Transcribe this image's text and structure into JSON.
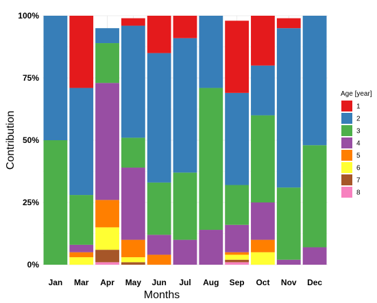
{
  "chart_data": {
    "type": "bar",
    "stacked": true,
    "normalized": true,
    "title": "",
    "xlabel": "Months",
    "ylabel": "Contribution",
    "ylim": [
      0,
      1
    ],
    "yticks": [
      0,
      0.25,
      0.5,
      0.75,
      1
    ],
    "ytick_labels": [
      "0%",
      "25%",
      "50%",
      "75%",
      "100%"
    ],
    "grid": true,
    "legend_position": "right",
    "legend_title": "Age [year]",
    "categories": [
      "Jan",
      "Mar",
      "Apr",
      "May",
      "Jun",
      "Jul",
      "Aug",
      "Sep",
      "Oct",
      "Nov",
      "Dec"
    ],
    "series": [
      {
        "name": "1",
        "color": "#e41a1c",
        "values": [
          0.0,
          0.29,
          0.0,
          0.03,
          0.15,
          0.09,
          0.0,
          0.29,
          0.2,
          0.04,
          0.0
        ]
      },
      {
        "name": "2",
        "color": "#377eb8",
        "values": [
          0.5,
          0.43,
          0.06,
          0.45,
          0.52,
          0.54,
          0.29,
          0.37,
          0.2,
          0.64,
          0.52
        ]
      },
      {
        "name": "3",
        "color": "#4daf4a",
        "values": [
          0.5,
          0.2,
          0.16,
          0.12,
          0.21,
          0.27,
          0.57,
          0.16,
          0.35,
          0.29,
          0.41
        ]
      },
      {
        "name": "4",
        "color": "#984ea3",
        "values": [
          0.0,
          0.03,
          0.47,
          0.29,
          0.08,
          0.1,
          0.14,
          0.11,
          0.15,
          0.02,
          0.07
        ]
      },
      {
        "name": "5",
        "color": "#ff7f00",
        "values": [
          0.0,
          0.02,
          0.11,
          0.07,
          0.04,
          0.0,
          0.0,
          0.01,
          0.05,
          0.0,
          0.0
        ]
      },
      {
        "name": "6",
        "color": "#ffff33",
        "values": [
          0.0,
          0.03,
          0.09,
          0.02,
          0.0,
          0.0,
          0.0,
          0.02,
          0.05,
          0.0,
          0.0
        ]
      },
      {
        "name": "7",
        "color": "#a65628",
        "values": [
          0.0,
          0.0,
          0.05,
          0.01,
          0.0,
          0.0,
          0.0,
          0.01,
          0.0,
          0.0,
          0.0
        ]
      },
      {
        "name": "8",
        "color": "#f781bf",
        "values": [
          0.0,
          0.0,
          0.01,
          0.0,
          0.0,
          0.0,
          0.0,
          0.01,
          0.0,
          0.0,
          0.0
        ]
      }
    ]
  }
}
